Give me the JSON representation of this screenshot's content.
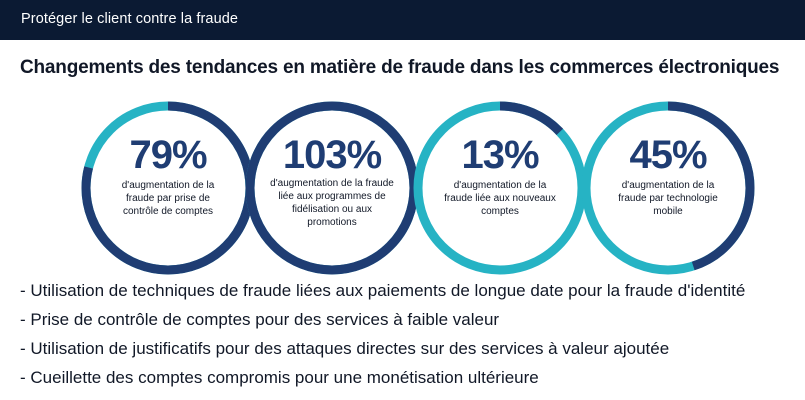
{
  "header": {
    "title": "Protéger le client contre la fraude"
  },
  "heading": "Changements des tendances en matière de fraude dans les commerces électroniques",
  "colors": {
    "dark_blue": "#1f3d73",
    "teal": "#26b3c4",
    "header_bg": "#0b1a33"
  },
  "stats": [
    {
      "value": "79%",
      "label": "d'augmentation de la fraude par prise de contrôle de comptes",
      "progress": 0.79
    },
    {
      "value": "103%",
      "label": "d'augmentation de la fraude liée aux programmes de fidélisation ou aux promotions",
      "progress": 1.0
    },
    {
      "value": "13%",
      "label": "d'augmentation de la fraude liée aux nouveaux comptes",
      "progress": 0.13
    },
    {
      "value": "45%",
      "label": "d'augmentation de la fraude par technologie mobile",
      "progress": 0.45
    }
  ],
  "bullets": [
    "- Utilisation de techniques de fraude liées aux paiements de longue date pour la fraude d'identité",
    "- Prise de contrôle de comptes pour des services à faible valeur",
    "- Utilisation de justificatifs pour des attaques directes sur des services à valeur ajoutée",
    "- Cueillette des comptes compromis pour une monétisation ultérieure"
  ]
}
